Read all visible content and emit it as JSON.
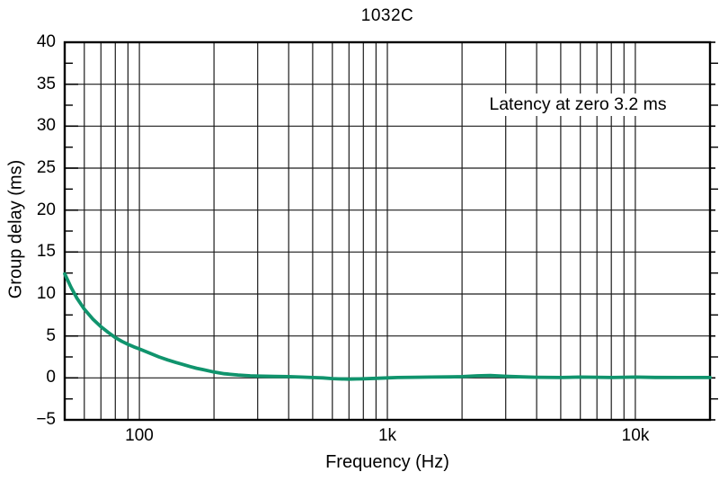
{
  "figure": {
    "title": "1032C",
    "annotation": "Latency at zero 3.2 ms"
  },
  "colors": {
    "curve": "#10946d",
    "grid": "#1c1c1c",
    "frame": "#000000",
    "text": "#000000",
    "background": "#ffffff"
  },
  "chart_data": {
    "type": "line",
    "title": "1032C",
    "xlabel": "Frequency (Hz)",
    "ylabel": "Group delay (ms)",
    "annotation": "Latency at zero 3.2 ms",
    "x_scale": "log",
    "xlim": [
      50,
      20000
    ],
    "ylim": [
      -5,
      40
    ],
    "y_major_step": 5,
    "y_minor_step": 2.5,
    "grid": true,
    "legend": "none",
    "x_ticks": [
      {
        "value": 100,
        "label": "100"
      },
      {
        "value": 1000,
        "label": "1k"
      },
      {
        "value": 10000,
        "label": "10k"
      }
    ],
    "y_ticks": [
      {
        "value": 40,
        "label": "40"
      },
      {
        "value": 35,
        "label": "35"
      },
      {
        "value": 30,
        "label": "30"
      },
      {
        "value": 25,
        "label": "25"
      },
      {
        "value": 20,
        "label": "20"
      },
      {
        "value": 15,
        "label": "15"
      },
      {
        "value": 10,
        "label": "10"
      },
      {
        "value": 5,
        "label": "5"
      },
      {
        "value": 0,
        "label": "0"
      },
      {
        "value": -5,
        "label": "−5"
      }
    ],
    "series": [
      {
        "name": "Group delay",
        "color": "#10946d",
        "points": [
          [
            50,
            12.4
          ],
          [
            53,
            10.8
          ],
          [
            56,
            9.5
          ],
          [
            60,
            8.2
          ],
          [
            65,
            7.0
          ],
          [
            70,
            6.1
          ],
          [
            75,
            5.4
          ],
          [
            80,
            4.8
          ],
          [
            85,
            4.35
          ],
          [
            90,
            4.0
          ],
          [
            95,
            3.7
          ],
          [
            100,
            3.45
          ],
          [
            110,
            2.95
          ],
          [
            120,
            2.5
          ],
          [
            130,
            2.15
          ],
          [
            140,
            1.85
          ],
          [
            150,
            1.6
          ],
          [
            160,
            1.35
          ],
          [
            170,
            1.15
          ],
          [
            180,
            1.0
          ],
          [
            200,
            0.7
          ],
          [
            220,
            0.5
          ],
          [
            250,
            0.35
          ],
          [
            280,
            0.25
          ],
          [
            300,
            0.22
          ],
          [
            350,
            0.18
          ],
          [
            400,
            0.15
          ],
          [
            450,
            0.1
          ],
          [
            500,
            0.05
          ],
          [
            550,
            0.0
          ],
          [
            600,
            -0.08
          ],
          [
            650,
            -0.12
          ],
          [
            700,
            -0.15
          ],
          [
            750,
            -0.12
          ],
          [
            800,
            -0.1
          ],
          [
            900,
            -0.05
          ],
          [
            1000,
            0.0
          ],
          [
            1100,
            0.05
          ],
          [
            1300,
            0.08
          ],
          [
            1500,
            0.1
          ],
          [
            1800,
            0.12
          ],
          [
            2000,
            0.15
          ],
          [
            2300,
            0.25
          ],
          [
            2600,
            0.28
          ],
          [
            3000,
            0.2
          ],
          [
            3500,
            0.12
          ],
          [
            4000,
            0.08
          ],
          [
            5000,
            0.05
          ],
          [
            6000,
            0.1
          ],
          [
            7000,
            0.08
          ],
          [
            8000,
            0.05
          ],
          [
            9000,
            0.08
          ],
          [
            10000,
            0.1
          ],
          [
            12000,
            0.06
          ],
          [
            15000,
            0.05
          ],
          [
            18000,
            0.05
          ],
          [
            20000,
            0.05
          ]
        ]
      }
    ]
  }
}
